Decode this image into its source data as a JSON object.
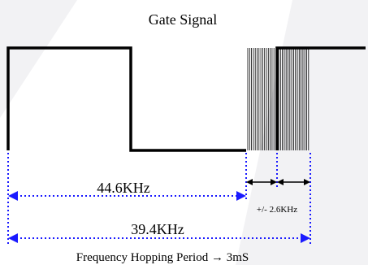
{
  "title": "Gate Signal",
  "labels": {
    "period_a": "44.6KHz",
    "period_b": "39.4KHz",
    "hop_range": "+/- 2.6KHz",
    "footer": "Frequency Hopping Period → 3mS"
  },
  "colors": {
    "signal": "#000000",
    "dimension": "#1a1aff",
    "watermark": "#f2f2f4"
  }
}
